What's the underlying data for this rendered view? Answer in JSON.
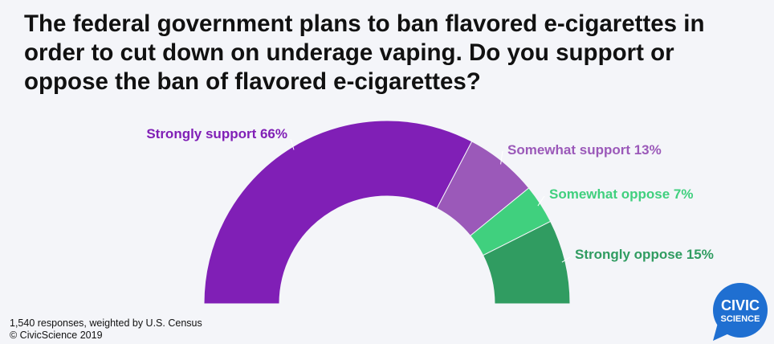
{
  "title": "The federal government plans to ban flavored e-cigarettes in order to cut down on underage vaping. Do you support or oppose the ban of flavored e-cigarettes?",
  "footnote": {
    "responses": "1,540 responses, weighted by U.S. Census",
    "copyright": "© CivicScience 2019"
  },
  "logo": {
    "line1": "CIVIC",
    "line2": "SCIENCE",
    "color": "#1f6fd1"
  },
  "chart_data": {
    "type": "pie",
    "variant": "half-donut",
    "categories": [
      "Strongly support",
      "Somewhat support",
      "Somewhat oppose",
      "Strongly oppose"
    ],
    "values": [
      66,
      13,
      7,
      15
    ],
    "labels": [
      "Strongly support 66%",
      "Somewhat support 13%",
      "Somewhat oppose 7%",
      "Strongly oppose 15%"
    ],
    "colors": [
      "#801fb6",
      "#9b59b9",
      "#40d07e",
      "#309c61"
    ],
    "legend": "none"
  }
}
